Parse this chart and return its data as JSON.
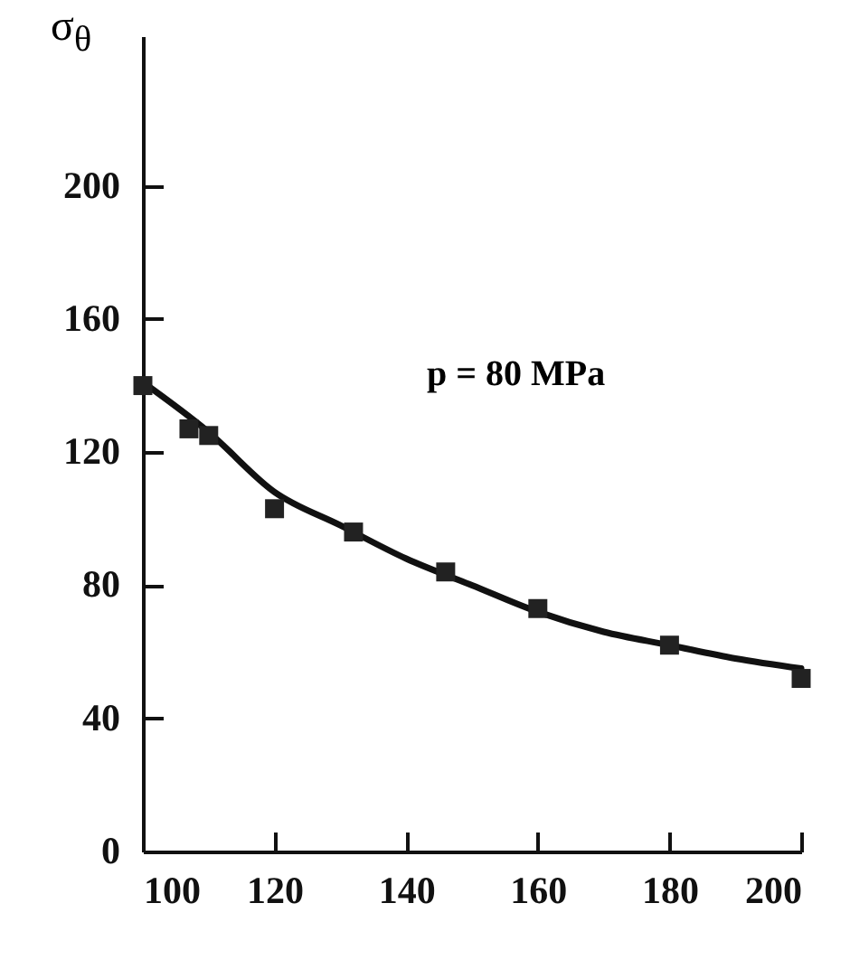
{
  "chart_data": {
    "type": "scatter",
    "ylabel": "σ$_{θ}$",
    "annotations": [
      "p = 80 MPa"
    ],
    "xlim": [
      100,
      200
    ],
    "xticks": [
      100,
      120,
      140,
      160,
      180,
      200
    ],
    "ylim": [
      0,
      245
    ],
    "yticks": [
      0,
      40,
      80,
      120,
      160,
      200
    ],
    "grid": false,
    "marker": "square",
    "series": [
      {
        "color": "#222222",
        "x": [
          100,
          107,
          110,
          120,
          132,
          146,
          160,
          180,
          200
        ],
        "values": [
          140,
          127,
          125,
          103,
          96,
          84,
          73,
          62,
          52
        ]
      },
      {
        "type": "line",
        "color": "#111111",
        "line_style": "solid",
        "marker": "none",
        "x": [
          100,
          110,
          120,
          130,
          140,
          150,
          160,
          170,
          180,
          190,
          200
        ],
        "values": [
          141,
          126,
          108,
          98,
          88,
          80,
          72,
          66,
          62,
          58,
          55
        ]
      }
    ]
  }
}
